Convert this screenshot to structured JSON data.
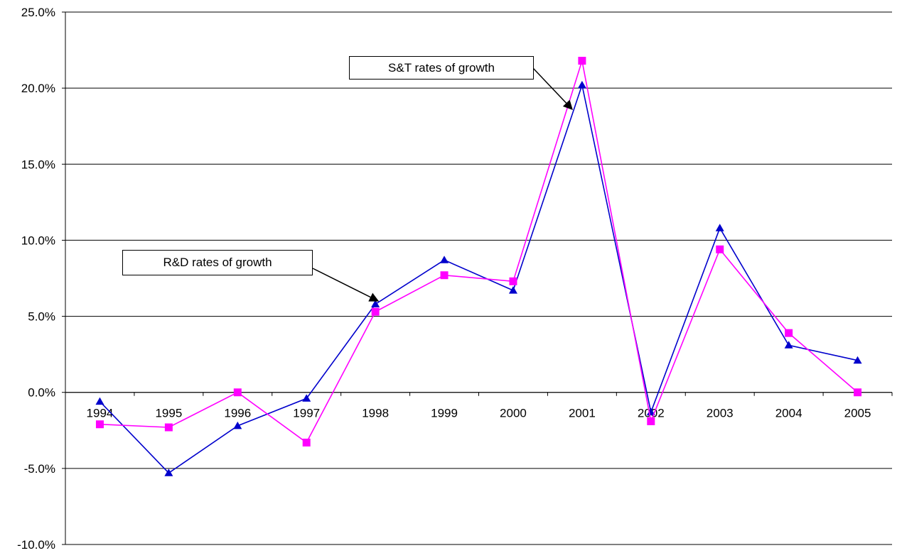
{
  "chart_data": {
    "type": "line",
    "title": "",
    "xlabel": "",
    "ylabel": "",
    "categories": [
      "1994",
      "1995",
      "1996",
      "1997",
      "1998",
      "1999",
      "2000",
      "2001",
      "2002",
      "2003",
      "2004",
      "2005"
    ],
    "yticks": [
      "25.0%",
      "20.0%",
      "15.0%",
      "10.0%",
      "5.0%",
      "0.0%",
      "-5.0%",
      "-10.0%"
    ],
    "ylim": [
      -10,
      25
    ],
    "y_unit": "%",
    "grid": "horizontal",
    "legend": "none",
    "series": [
      {
        "color": "#0000cc",
        "marker": "triangle",
        "values": [
          -0.6,
          -5.3,
          -2.2,
          -0.4,
          5.8,
          8.7,
          6.7,
          20.2,
          -1.3,
          10.8,
          3.1,
          2.1
        ]
      },
      {
        "color": "#ff00ff",
        "marker": "square",
        "values": [
          -2.1,
          -2.3,
          0.0,
          -3.3,
          5.3,
          7.7,
          7.3,
          21.8,
          -1.9,
          9.4,
          3.9,
          0.0
        ]
      }
    ],
    "annotations": [
      {
        "text": "S&T rates of growth"
      },
      {
        "text": "R&D rates of growth"
      }
    ]
  }
}
